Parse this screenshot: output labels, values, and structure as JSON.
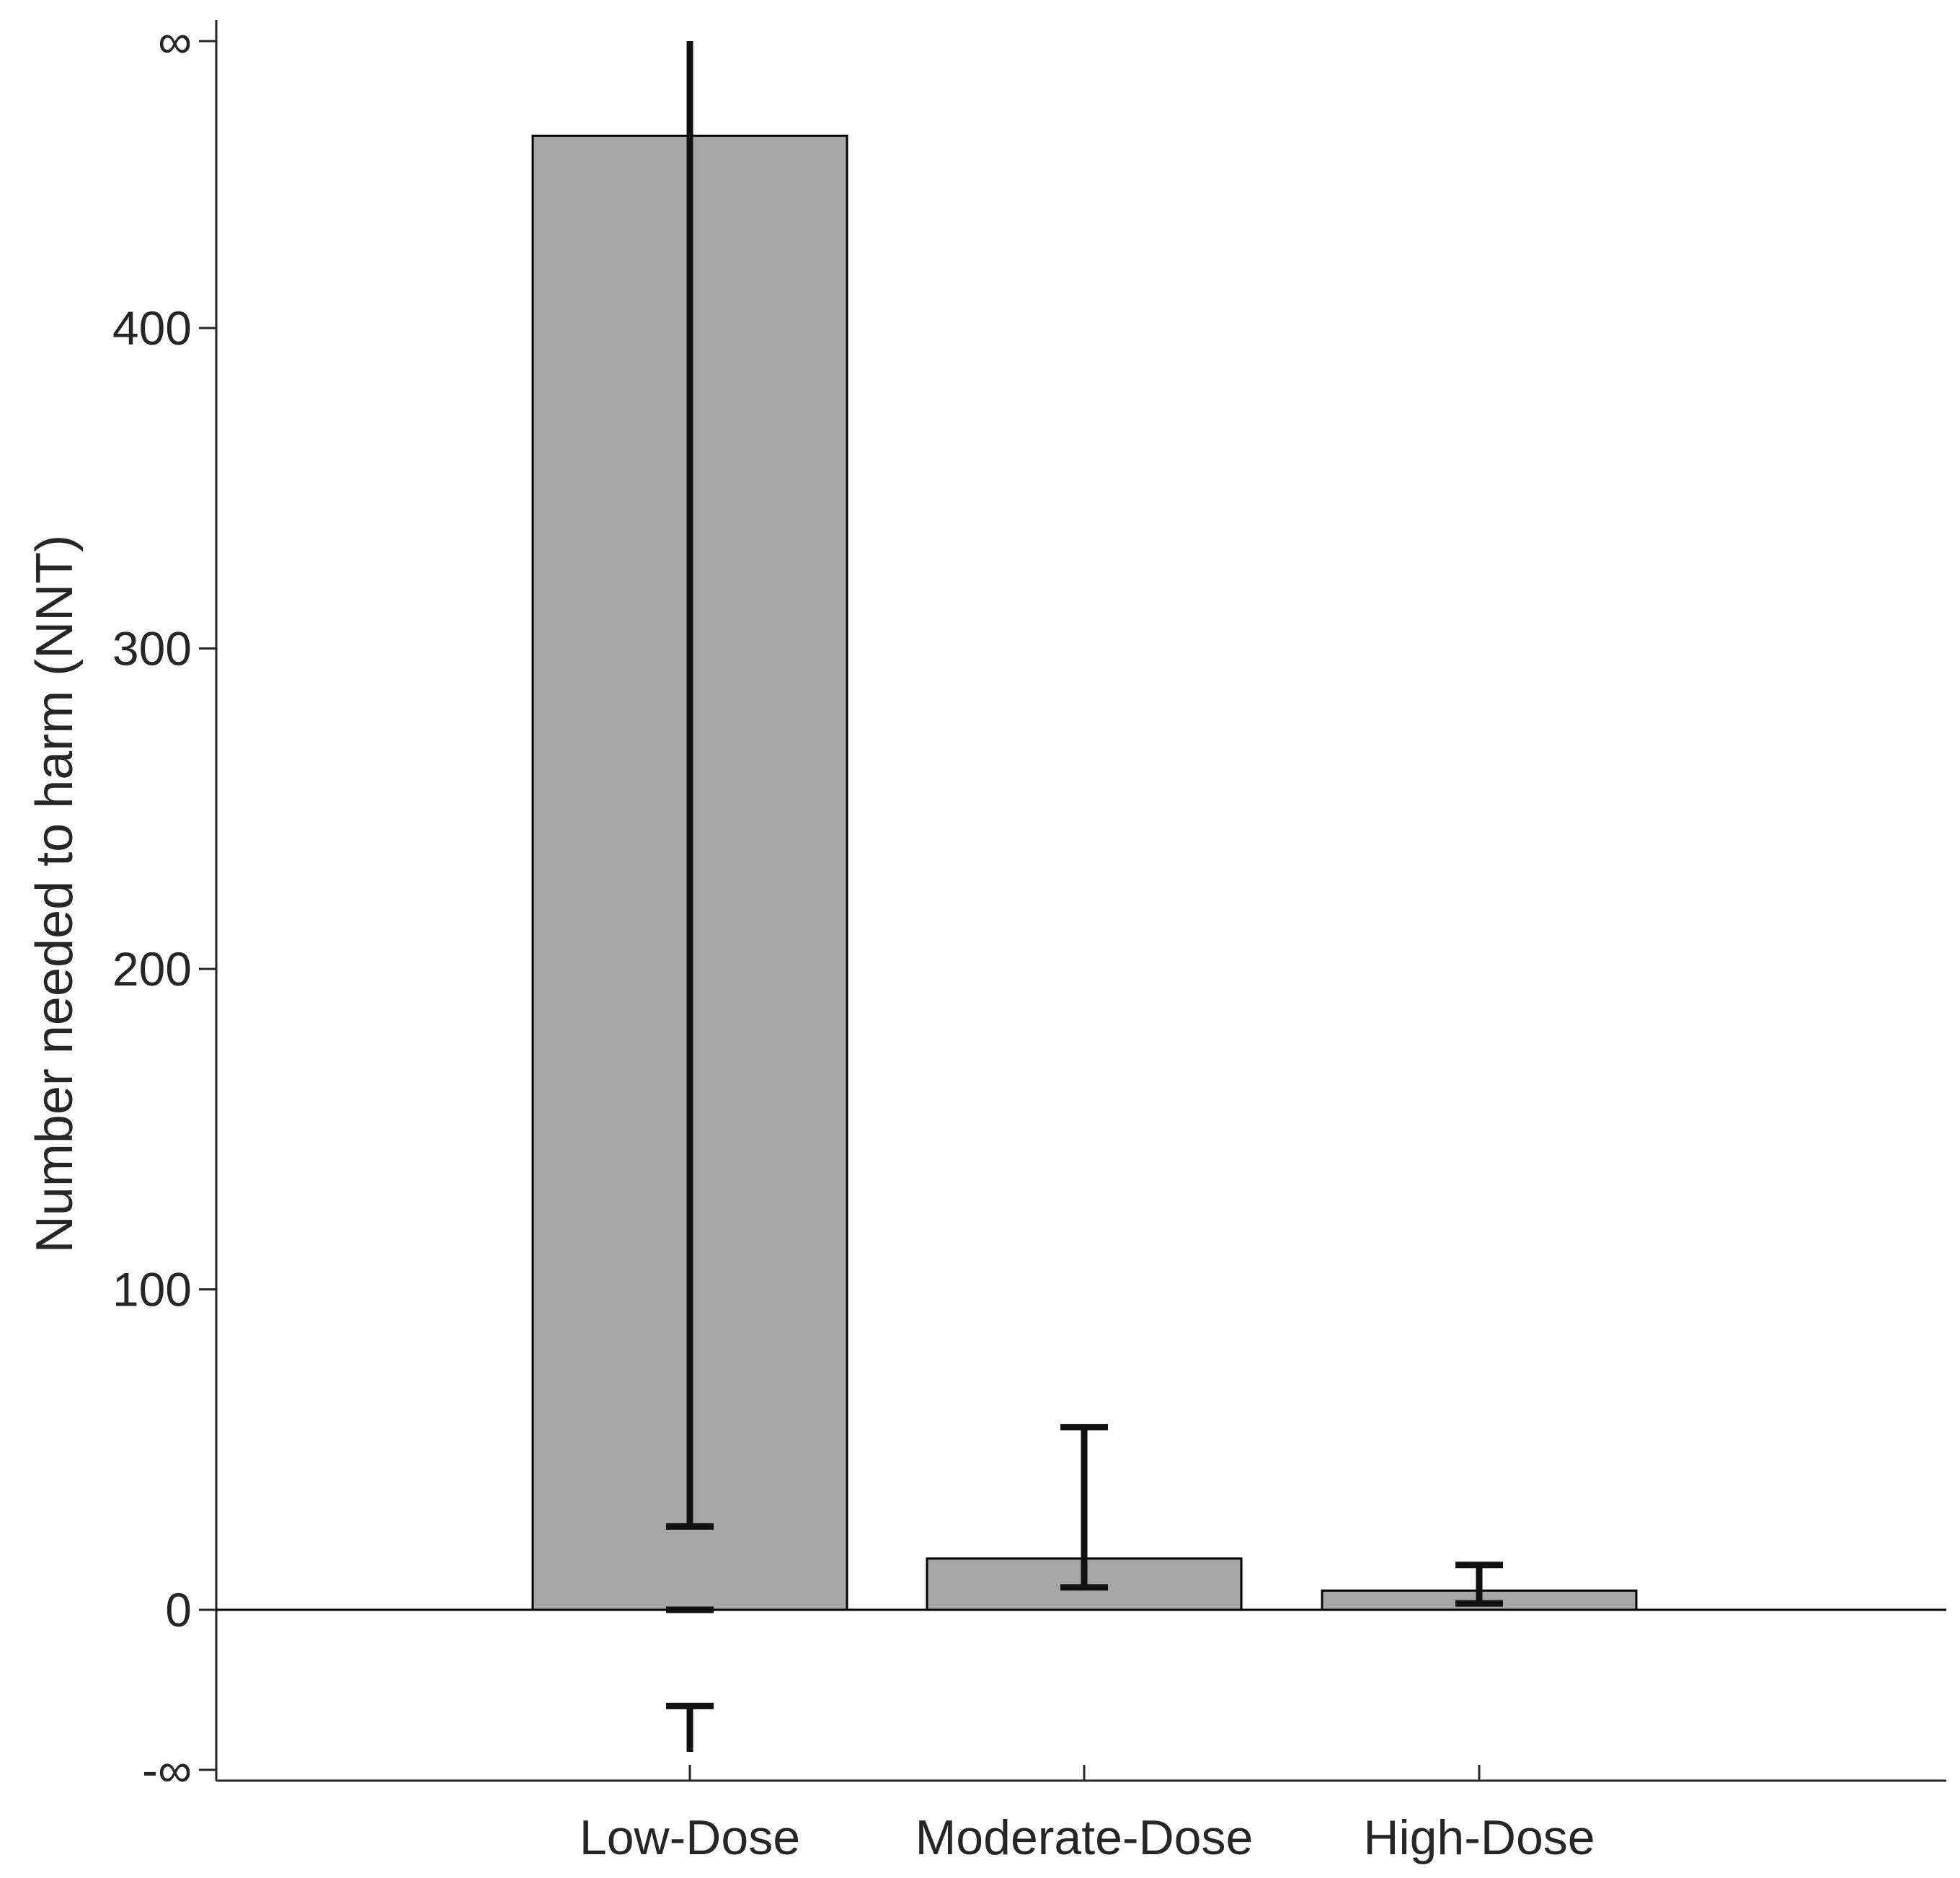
{
  "chart_data": {
    "type": "bar",
    "title": "",
    "xlabel": "",
    "ylabel": "Number needed to harm (NNT)",
    "categories": [
      "Low-Dose",
      "Moderate-Dose",
      "High-Dose"
    ],
    "values": [
      460,
      16,
      6
    ],
    "error_bars": [
      {
        "category": "Low-Dose",
        "upper": "∞",
        "lower": 26,
        "negative_branch": {
          "from": "-∞",
          "to": -30
        },
        "zero_marker": true
      },
      {
        "category": "Moderate-Dose",
        "upper": 57,
        "lower": 7
      },
      {
        "category": "High-Dose",
        "upper": 14,
        "lower": 2
      }
    ],
    "y_ticks": [
      "-∞",
      "0",
      "100",
      "200",
      "300",
      "400",
      "∞"
    ],
    "ylim": [
      "-∞",
      "∞"
    ],
    "axis_breaks": "infinite endpoints",
    "grid": false,
    "legend": "none",
    "colors": {
      "bar_fill": "#a6a6a6",
      "bar_edge": "#000000",
      "error_bar": "#111111",
      "axis": "#262626"
    }
  }
}
